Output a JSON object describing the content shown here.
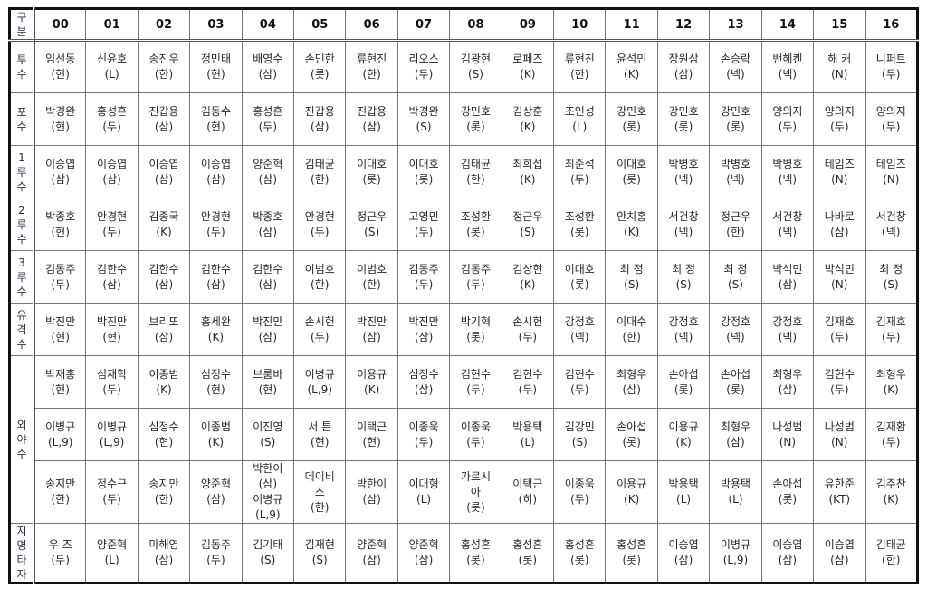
{
  "header": {
    "label": "구\n분",
    "columns": [
      "00",
      "01",
      "02",
      "03",
      "04",
      "05",
      "06",
      "07",
      "08",
      "09",
      "10",
      "11",
      "12",
      "13",
      "14",
      "15",
      "16"
    ]
  },
  "rows": [
    {
      "label": "투\n수",
      "cells": [
        "임선동\n(현)",
        "신윤호\n(L)",
        "송진우\n(한)",
        "정민태\n(현)",
        "배영수\n(삼)",
        "손민한\n(롯)",
        "류현진\n(한)",
        "리오스\n(두)",
        "김광현\n(S)",
        "로페즈\n(K)",
        "류현진\n(한)",
        "윤석민\n(K)",
        "장원삼\n(삼)",
        "손승락\n(넥)",
        "밴헤켄\n(넥)",
        "해  커\n(N)",
        "니퍼트\n(두)"
      ]
    },
    {
      "label": "포\n수",
      "cells": [
        "박경완\n(현)",
        "홍성흔\n(두)",
        "진갑용\n(삼)",
        "김동수\n(현)",
        "홍성흔\n(두)",
        "진갑용\n(삼)",
        "진갑용\n(삼)",
        "박경완\n(S)",
        "강민호\n(롯)",
        "김상훈\n(K)",
        "조인성\n(L)",
        "강민호\n(롯)",
        "강민호\n(롯)",
        "강민호\n(롯)",
        "양의지\n(두)",
        "양의지\n(두)",
        "양의지\n(두)"
      ]
    },
    {
      "label": "1\n루\n수",
      "cells": [
        "이승엽\n(삼)",
        "이승엽\n(삼)",
        "이승엽\n(삼)",
        "이승엽\n(삼)",
        "양준혁\n(삼)",
        "김태균\n(한)",
        "이대호\n(롯)",
        "이대호\n(롯)",
        "김태균\n(한)",
        "최희섭\n(K)",
        "최준석\n(두)",
        "이대호\n(롯)",
        "박병호\n(넥)",
        "박병호\n(넥)",
        "박병호\n(넥)",
        "테임즈\n(N)",
        "테임즈\n(N)"
      ]
    },
    {
      "label": "2\n루\n수",
      "cells": [
        "박종호\n(현)",
        "안경현\n(두)",
        "김종국\n(K)",
        "안경현\n(두)",
        "박종호\n(삼)",
        "안경현\n(두)",
        "정근우\n(S)",
        "고영민\n(두)",
        "조성환\n(롯)",
        "정근우\n(S)",
        "조성환\n(롯)",
        "안치홍\n(K)",
        "서건창\n(넥)",
        "정근우\n(한)",
        "서건창\n(넥)",
        "나바로\n(삼)",
        "서건창\n(넥)"
      ]
    },
    {
      "label": "3\n루\n수",
      "cells": [
        "김동주\n(두)",
        "김한수\n(삼)",
        "김한수\n(삼)",
        "김한수\n(삼)",
        "김한수\n(삼)",
        "이범호\n(한)",
        "이범호\n(한)",
        "김동주\n(두)",
        "김동주\n(두)",
        "김상현\n(K)",
        "이대호\n(롯)",
        "최  정\n(S)",
        "최  정\n(S)",
        "최  정\n(S)",
        "박석민\n(삼)",
        "박석민\n(N)",
        "최  정\n(S)"
      ]
    },
    {
      "label": "유\n격\n수",
      "cells": [
        "박진만\n(현)",
        "박진만\n(현)",
        "브리또\n(삼)",
        "홍세완\n(K)",
        "박진만\n(삼)",
        "손시헌\n(두)",
        "박진만\n(삼)",
        "박진만\n(삼)",
        "박기혁\n(롯)",
        "손시헌\n(두)",
        "강정호\n(넥)",
        "이대수\n(한)",
        "강정호\n(넥)",
        "강정호\n(넥)",
        "강정호\n(넥)",
        "김재호\n(두)",
        "김재호\n(두)"
      ]
    }
  ],
  "outfield": {
    "label": "외\n야\n수",
    "rows": [
      [
        "박재홍\n(현)",
        "심재학\n(두)",
        "이종범\n(K)",
        "심정수\n(현)",
        "브룸바\n(현)",
        "이병규\n(L,9)",
        "이용규\n(K)",
        "심정수\n(삼)",
        "김현수\n(두)",
        "김현수\n(두)",
        "김현수\n(두)",
        "최형우\n(삼)",
        "손아섭\n(롯)",
        "손아섭\n(롯)",
        "최형우\n(삼)",
        "김현수\n(두)",
        "최형우\n(K)"
      ],
      [
        "이병규\n(L,9)",
        "이병규\n(L,9)",
        "심정수\n(현)",
        "이종범\n(K)",
        "이진영\n(S)",
        "서  튼\n(현)",
        "이택근\n(현)",
        "이종욱\n(두)",
        "이종욱\n(두)",
        "박용택\n(L)",
        "김강민\n(S)",
        "손아섭\n(롯)",
        "이용규\n(K)",
        "최형우\n(삼)",
        "나성범\n(N)",
        "나성범\n(N)",
        "김재환\n(두)"
      ],
      [
        "송지만\n(한)",
        "정수근\n(두)",
        "송지만\n(한)",
        "양준혁\n(삼)",
        "박한이\n(삼)\n이병규\n(L,9)",
        "데이비\n스\n(한)",
        "박한이\n(삼)",
        "이대형\n(L)",
        "가르시\n아\n(롯)",
        "이택근\n(히)",
        "이종욱\n(두)",
        "이용규\n(K)",
        "박용택\n(L)",
        "박용택\n(L)",
        "손아섭\n(롯)",
        "유한준\n(KT)",
        "김주찬\n(K)"
      ]
    ]
  },
  "dh": {
    "label": "지\n명\n타\n자",
    "cells": [
      "우  즈\n(두)",
      "양준혁\n(L)",
      "마해영\n(삼)",
      "김동주\n(두)",
      "김기태\n(S)",
      "김재현\n(S)",
      "양준혁\n(삼)",
      "양준혁\n(삼)",
      "홍성흔\n(롯)",
      "홍성흔\n(롯)",
      "홍성흔\n(롯)",
      "홍성흔\n(롯)",
      "이승엽\n(삼)",
      "이병규\n(L,9)",
      "이승엽\n(삼)",
      "이승엽\n(삼)",
      "김태균\n(한)"
    ]
  }
}
